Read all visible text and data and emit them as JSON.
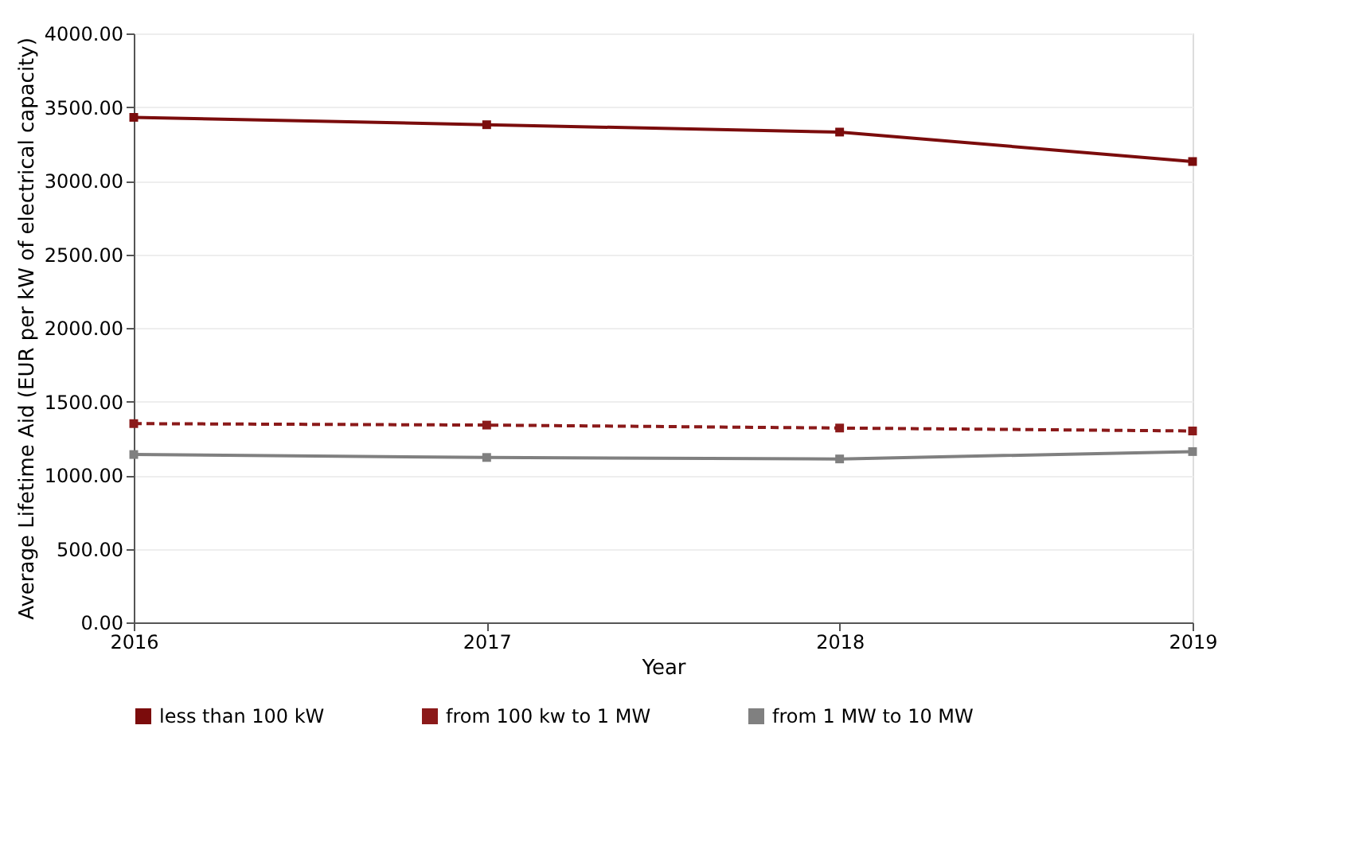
{
  "chart_data": {
    "type": "line",
    "xlabel": "Year",
    "ylabel": "Average Lifetime Aid (EUR per kW of electrical capacity)",
    "x": [
      2016,
      2017,
      2018,
      2019
    ],
    "xlim": [
      2016,
      2019
    ],
    "xticks": [
      2016,
      2017,
      2018,
      2019
    ],
    "ylim": [
      0,
      4000
    ],
    "yticks": [
      {
        "value": 0,
        "label": "0.00"
      },
      {
        "value": 500,
        "label": "500.00"
      },
      {
        "value": 1000,
        "label": "1000.00"
      },
      {
        "value": 1500,
        "label": "1500.00"
      },
      {
        "value": 2000,
        "label": "2000.00"
      },
      {
        "value": 2500,
        "label": "2500.00"
      },
      {
        "value": 3000,
        "label": "3000.00"
      },
      {
        "value": 3500,
        "label": "3500.00"
      },
      {
        "value": 4000,
        "label": "4000.00"
      }
    ],
    "grid": "y",
    "legend": "bottom",
    "marker": "square",
    "series": [
      {
        "name": "less than 100 kW",
        "color": "#7b0c0c",
        "line_style": "solid",
        "values": [
          3430,
          3380,
          3330,
          3130
        ]
      },
      {
        "name": "from 100 kw to 1 MW",
        "color": "#8b1a1a",
        "line_style": "dashed",
        "values": [
          1350,
          1340,
          1320,
          1300
        ]
      },
      {
        "name": "from 1 MW to 10 MW",
        "color": "#808080",
        "line_style": "solid",
        "values": [
          1140,
          1120,
          1110,
          1160
        ]
      }
    ]
  }
}
